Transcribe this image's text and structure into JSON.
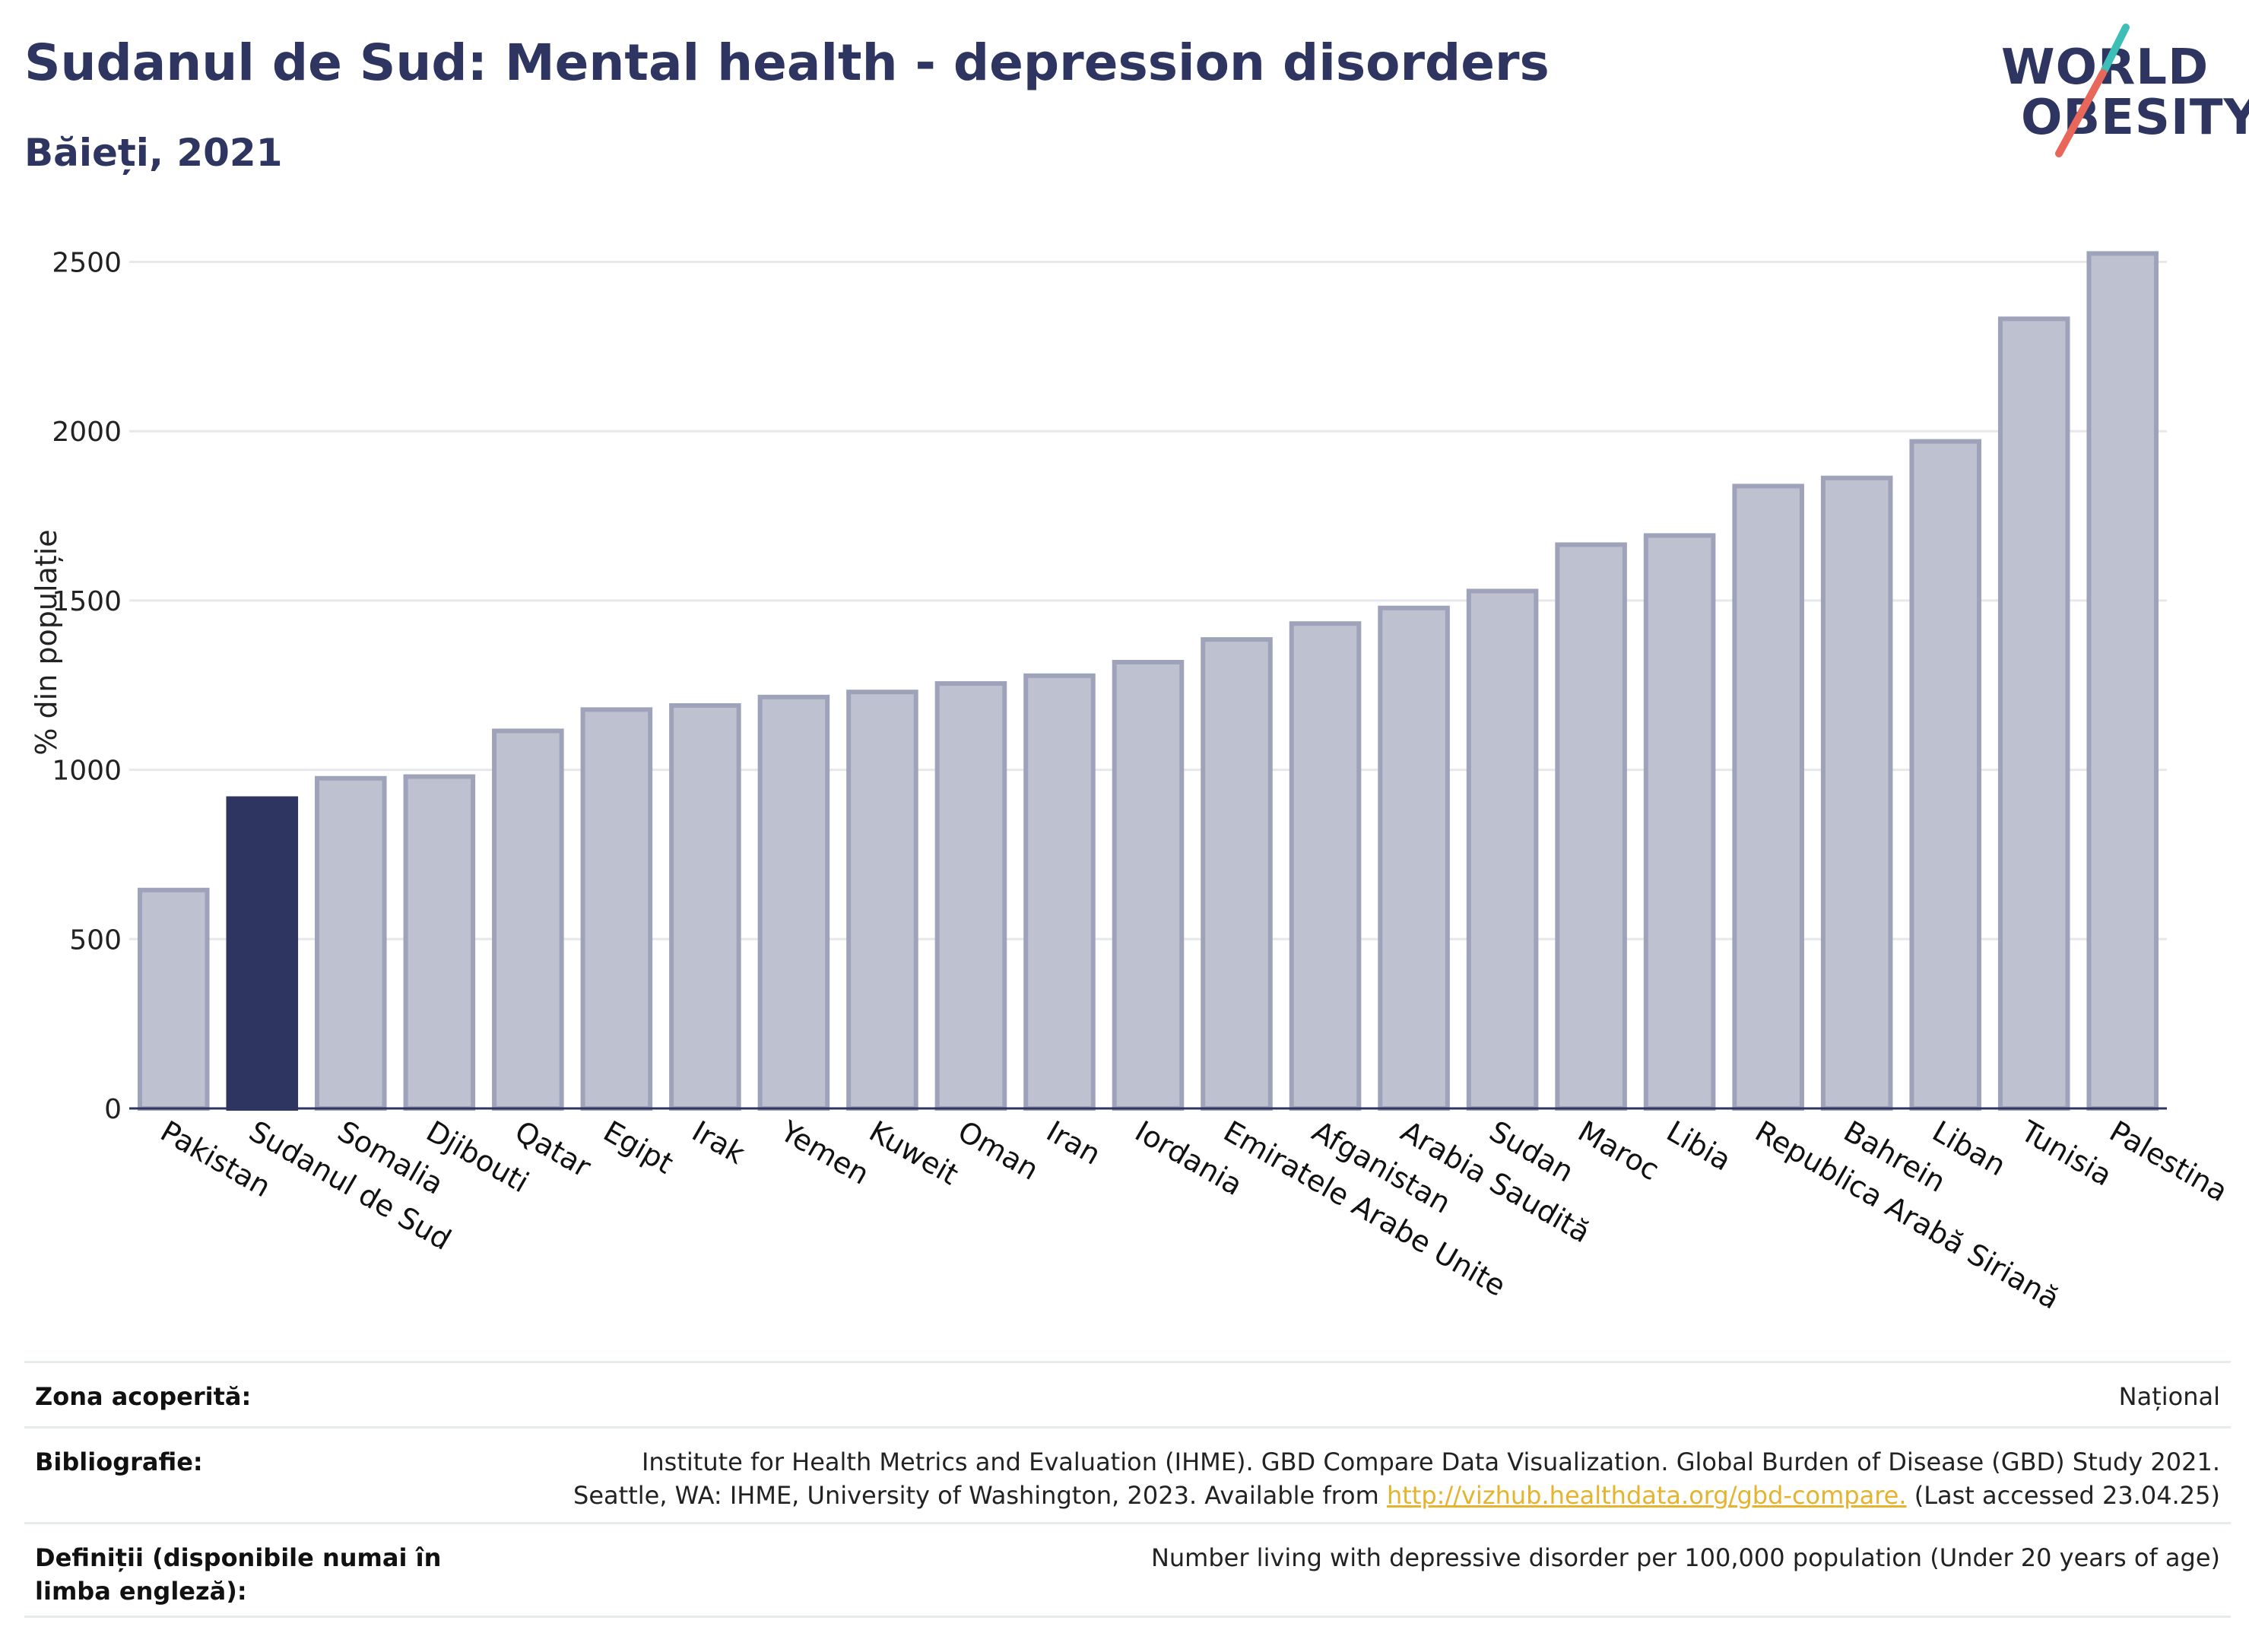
{
  "header": {
    "title": "Sudanul de Sud: Mental health - depression disorders",
    "subtitle": "Băieți, 2021"
  },
  "logo": {
    "line1": "WORLD",
    "line2": "OBESITY",
    "colors": {
      "text": "#2d3560",
      "slash_top": "#3dbfb8",
      "slash_bottom": "#e8665a"
    }
  },
  "chart_data": {
    "type": "bar",
    "ylabel": "% din populație",
    "xlabel": "",
    "ylim": [
      0,
      2600
    ],
    "yticks": [
      0,
      500,
      1000,
      1500,
      2000,
      2500
    ],
    "grid": true,
    "highlight_category": "Sudanul de Sud",
    "colors": {
      "bar": "#bec1cf",
      "bar_edge": "#9ea3ba",
      "highlight": "#2d3560",
      "grid": "#e6e8ec"
    },
    "categories": [
      "Pakistan",
      "Sudanul de Sud",
      "Somalia",
      "Djibouti",
      "Qatar",
      "Egipt",
      "Irak",
      "Yemen",
      "Kuweit",
      "Oman",
      "Iran",
      "Iordania",
      "Emiratele Arabe Unite",
      "Afganistan",
      "Arabia Saudită",
      "Sudan",
      "Maroc",
      "Libia",
      "Republica Arabă Siriană",
      "Bahrein",
      "Liban",
      "Tunisia",
      "Palestina"
    ],
    "values": [
      645,
      915,
      975,
      980,
      1115,
      1178,
      1190,
      1215,
      1230,
      1255,
      1278,
      1318,
      1385,
      1432,
      1478,
      1528,
      1665,
      1692,
      1838,
      1862,
      1970,
      2332,
      2525
    ]
  },
  "footer": {
    "coverage_label": "Zona acoperită:",
    "coverage_value": "Național",
    "bibliography_label": "Bibliografie:",
    "bibliography_line1": "Institute for Health Metrics and Evaluation (IHME). GBD Compare Data Visualization. Global Burden of Disease (GBD) Study 2021.",
    "bibliography_line2_pre": "Seattle, WA: IHME, University of Washington, 2023. Available from ",
    "bibliography_link": "http://vizhub.healthdata.org/gbd-compare.",
    "bibliography_line2_post": " (Last accessed 23.04.25)",
    "definitions_label": "Definiții (disponibile numai în limba engleză):",
    "definitions_value": "Number living with depressive disorder per 100,000 population (Under 20 years of age)"
  }
}
